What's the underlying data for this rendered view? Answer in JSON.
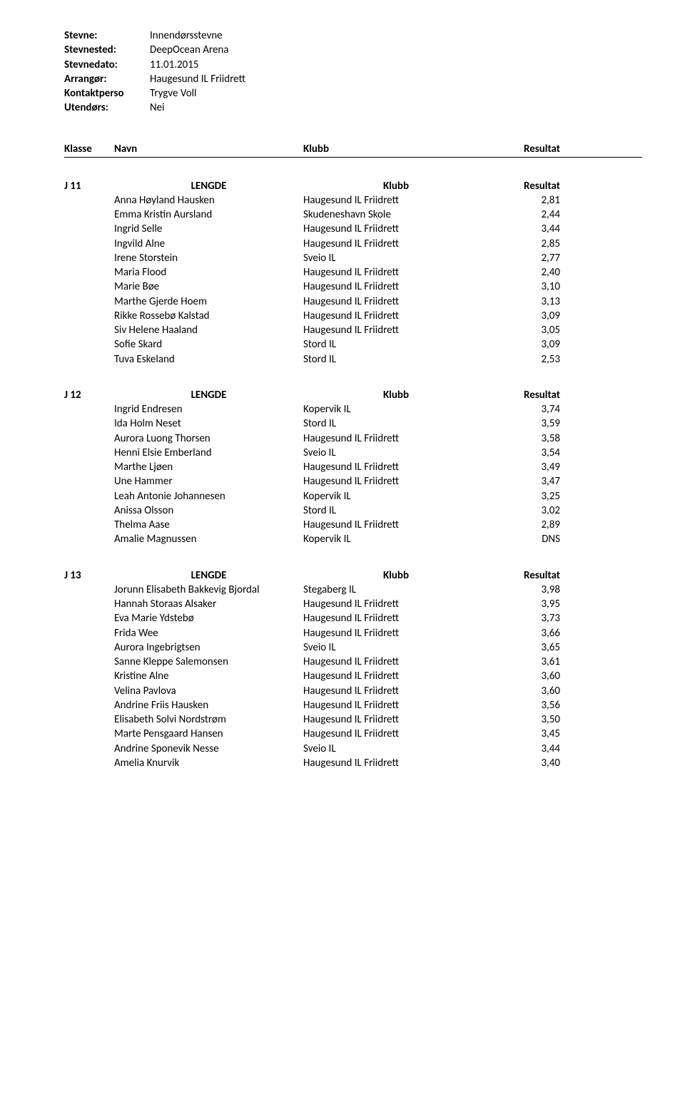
{
  "meta": {
    "labels": {
      "stevne": "Stevne:",
      "stevnested": "Stevnested:",
      "stevnedato": "Stevnedato:",
      "arrangor": "Arrangør:",
      "kontaktperson": "Kontaktperson:",
      "kontaktperson_trunc": "Kontaktperso",
      "utendors": "Utendørs:"
    },
    "values": {
      "stevne": "Innendørsstevne",
      "stevnested": "DeepOcean Arena",
      "stevnedato": "11.01.2015",
      "arrangor": "Haugesund IL Friidrett",
      "kontaktperson": "Trygve Voll",
      "utendors": "Nei"
    }
  },
  "header": {
    "klasse": "Klasse",
    "navn": "Navn",
    "klubb": "Klubb",
    "resultat": "Resultat"
  },
  "sections": [
    {
      "klasse": "J 11",
      "event": "LENGDE",
      "klubb_hdr": "Klubb",
      "resultat_hdr": "Resultat",
      "rows": [
        {
          "navn": "Anna Høyland Hausken",
          "klubb": "Haugesund IL Friidrett",
          "res": "2,81"
        },
        {
          "navn": "Emma Kristin Aursland",
          "klubb": "Skudeneshavn Skole",
          "res": "2,44"
        },
        {
          "navn": "Ingrid Selle",
          "klubb": "Haugesund IL Friidrett",
          "res": "3,44"
        },
        {
          "navn": "Ingvild Alne",
          "klubb": "Haugesund IL Friidrett",
          "res": "2,85"
        },
        {
          "navn": "Irene Storstein",
          "klubb": "Sveio IL",
          "res": "2,77"
        },
        {
          "navn": "Maria Flood",
          "klubb": "Haugesund IL Friidrett",
          "res": "2,40"
        },
        {
          "navn": "Marie Bøe",
          "klubb": "Haugesund IL Friidrett",
          "res": "3,10"
        },
        {
          "navn": "Marthe Gjerde Hoem",
          "klubb": "Haugesund IL Friidrett",
          "res": "3,13"
        },
        {
          "navn": "Rikke Rossebø Kalstad",
          "klubb": "Haugesund IL Friidrett",
          "res": "3,09"
        },
        {
          "navn": "Siv Helene Haaland",
          "klubb": "Haugesund IL Friidrett",
          "res": "3,05"
        },
        {
          "navn": "Sofie Skard",
          "klubb": "Stord IL",
          "res": "3,09"
        },
        {
          "navn": "Tuva Eskeland",
          "klubb": "Stord IL",
          "res": "2,53"
        }
      ]
    },
    {
      "klasse": "J 12",
      "event": "LENGDE",
      "klubb_hdr": "Klubb",
      "resultat_hdr": "Resultat",
      "rows": [
        {
          "navn": "Ingrid Endresen",
          "klubb": "Kopervik IL",
          "res": "3,74"
        },
        {
          "navn": "Ida Holm Neset",
          "klubb": "Stord IL",
          "res": "3,59"
        },
        {
          "navn": "Aurora Luong Thorsen",
          "klubb": "Haugesund IL Friidrett",
          "res": "3,58"
        },
        {
          "navn": "Henni Elsie Emberland",
          "klubb": "Sveio IL",
          "res": "3,54"
        },
        {
          "navn": "Marthe Ljøen",
          "klubb": "Haugesund IL Friidrett",
          "res": "3,49"
        },
        {
          "navn": "Une Hammer",
          "klubb": "Haugesund IL Friidrett",
          "res": "3,47"
        },
        {
          "navn": "Leah Antonie Johannesen",
          "klubb": "Kopervik IL",
          "res": "3,25"
        },
        {
          "navn": "Anissa Olsson",
          "klubb": "Stord IL",
          "res": "3,02"
        },
        {
          "navn": "Thelma Aase",
          "klubb": "Haugesund IL Friidrett",
          "res": "2,89"
        },
        {
          "navn": "Amalie Magnussen",
          "klubb": "Kopervik IL",
          "res": "DNS"
        }
      ]
    },
    {
      "klasse": "J 13",
      "event": "LENGDE",
      "klubb_hdr": "Klubb",
      "resultat_hdr": "Resultat",
      "rows": [
        {
          "navn": "Jorunn Elisabeth Bakkevig Bjordal",
          "klubb": "Stegaberg IL",
          "res": "3,98"
        },
        {
          "navn": "Hannah Storaas Alsaker",
          "klubb": "Haugesund IL Friidrett",
          "res": "3,95"
        },
        {
          "navn": "Eva Marie Ydstebø",
          "klubb": "Haugesund IL Friidrett",
          "res": "3,73"
        },
        {
          "navn": "Frida Wee",
          "klubb": "Haugesund IL Friidrett",
          "res": "3,66"
        },
        {
          "navn": "Aurora Ingebrigtsen",
          "klubb": "Sveio IL",
          "res": "3,65"
        },
        {
          "navn": "Sanne Kleppe Salemonsen",
          "klubb": "Haugesund IL Friidrett",
          "res": "3,61"
        },
        {
          "navn": "Kristine Alne",
          "klubb": "Haugesund IL Friidrett",
          "res": "3,60"
        },
        {
          "navn": "Velina Pavlova",
          "klubb": "Haugesund IL Friidrett",
          "res": "3,60"
        },
        {
          "navn": "Andrine Friis Hausken",
          "klubb": "Haugesund IL Friidrett",
          "res": "3,56"
        },
        {
          "navn": "Elisabeth Solvi Nordstrøm",
          "klubb": "Haugesund IL Friidrett",
          "res": "3,50"
        },
        {
          "navn": "Marte Pensgaard Hansen",
          "klubb": "Haugesund IL Friidrett",
          "res": "3,45"
        },
        {
          "navn": "Andrine Sponevik Nesse",
          "klubb": "Sveio IL",
          "res": "3,44"
        },
        {
          "navn": "Amelia Knurvik",
          "klubb": "Haugesund IL Friidrett",
          "res": "3,40"
        }
      ]
    }
  ]
}
